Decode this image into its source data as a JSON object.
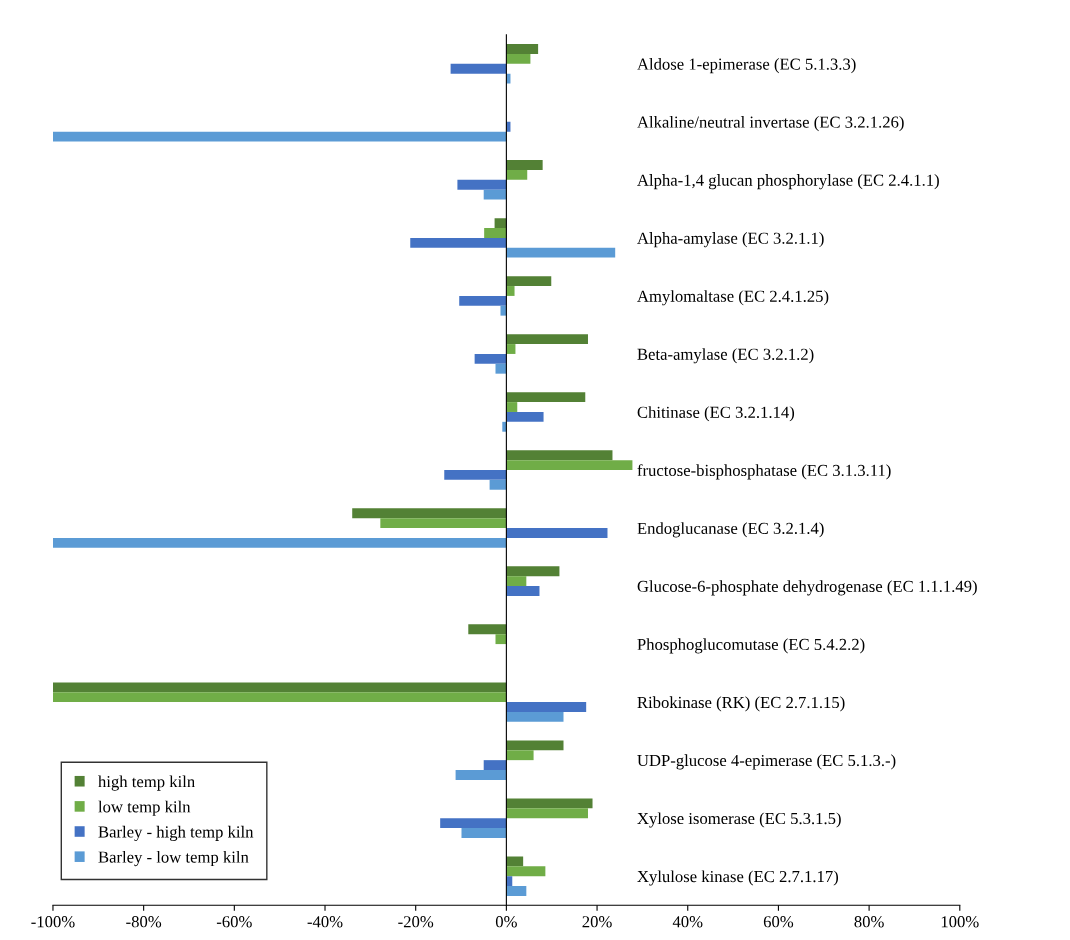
{
  "chart_data": {
    "type": "bar",
    "orientation": "horizontal",
    "categories": [
      "Aldose 1-epimerase (EC 5.1.3.3)",
      "Alkaline/neutral invertase (EC 3.2.1.26)",
      "Alpha-1,4 glucan phosphorylase (EC 2.4.1.1)",
      "Alpha-amylase (EC 3.2.1.1)",
      "Amylomaltase (EC 2.4.1.25)",
      "Beta-amylase (EC 3.2.1.2)",
      "Chitinase (EC 3.2.1.14)",
      "fructose-bisphosphatase (EC 3.1.3.11)",
      "Endoglucanase (EC 3.2.1.4)",
      "Glucose-6-phosphate dehydrogenase (EC 1.1.1.49)",
      "Phosphoglucomutase (EC 5.4.2.2)",
      "Ribokinase (RK) (EC 2.7.1.15)",
      "UDP-glucose 4-epimerase (EC 5.1.3.-)",
      "Xylose isomerase (EC 5.3.1.5)",
      "Xylulose kinase (EC 2.7.1.17)"
    ],
    "series": [
      {
        "name": "high temp kiln",
        "color": "#538135",
        "values": [
          7,
          0,
          8,
          -2.6,
          9.9,
          18,
          17.4,
          23.4,
          -34,
          11.7,
          -8.4,
          -100,
          12.6,
          19,
          3.7
        ]
      },
      {
        "name": "low temp kiln",
        "color": "#70ad47",
        "values": [
          5.3,
          0,
          4.6,
          -4.9,
          1.8,
          2,
          2.4,
          27.8,
          -27.8,
          4.4,
          -2.4,
          -100,
          6,
          18,
          8.6
        ]
      },
      {
        "name": "Barley - high temp kiln",
        "color": "#4472c4",
        "values": [
          -12.3,
          0.9,
          -10.8,
          -21.2,
          -10.4,
          -7,
          8.2,
          -13.7,
          22.3,
          7.3,
          0,
          17.6,
          -5,
          -14.6,
          1.3
        ]
      },
      {
        "name": "Barley - low temp kiln",
        "color": "#5b9bd5",
        "values": [
          0.9,
          -100,
          -5,
          24,
          -1.3,
          -2.4,
          -0.9,
          -3.7,
          -100,
          0,
          0,
          12.6,
          -11.2,
          -9.9,
          4.4
        ]
      }
    ],
    "xlim": [
      -100,
      100
    ],
    "xticks": [
      {
        "value": -100,
        "label": "-100%"
      },
      {
        "value": -80,
        "label": "-80%"
      },
      {
        "value": -60,
        "label": "-60%"
      },
      {
        "value": -40,
        "label": "-40%"
      },
      {
        "value": -20,
        "label": "-20%"
      },
      {
        "value": 0,
        "label": "0%"
      },
      {
        "value": 20,
        "label": "20%"
      },
      {
        "value": 40,
        "label": "40%"
      },
      {
        "value": 60,
        "label": "60%"
      },
      {
        "value": 80,
        "label": "80%"
      },
      {
        "value": 100,
        "label": "100%"
      }
    ],
    "legend": "bottom left"
  }
}
